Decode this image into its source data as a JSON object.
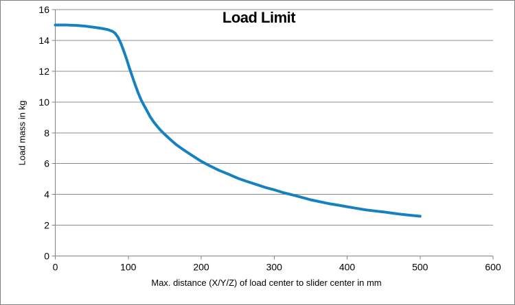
{
  "chart_data": {
    "type": "line",
    "title": "Load Limit",
    "xlabel": "Max. distance (X/Y/Z) of load center to slider center in mm",
    "ylabel": "Load mass in kg",
    "xlim": [
      0,
      600
    ],
    "ylim": [
      0,
      16
    ],
    "x_ticks": [
      0,
      100,
      200,
      300,
      400,
      500,
      600
    ],
    "y_ticks": [
      0,
      2,
      4,
      6,
      8,
      10,
      12,
      14,
      16
    ],
    "grid": "horizontal-only",
    "legend": "none",
    "series": [
      {
        "points": [
          [
            0,
            15.0
          ],
          [
            15,
            15.0
          ],
          [
            30,
            14.97
          ],
          [
            40,
            14.93
          ],
          [
            50,
            14.87
          ],
          [
            58,
            14.82
          ],
          [
            66,
            14.76
          ],
          [
            72,
            14.7
          ],
          [
            78,
            14.6
          ],
          [
            82,
            14.47
          ],
          [
            86,
            14.2
          ],
          [
            90,
            13.8
          ],
          [
            94,
            13.3
          ],
          [
            98,
            12.75
          ],
          [
            102,
            12.15
          ],
          [
            106,
            11.6
          ],
          [
            110,
            11.05
          ],
          [
            114,
            10.55
          ],
          [
            118,
            10.1
          ],
          [
            122,
            9.75
          ],
          [
            126,
            9.4
          ],
          [
            130,
            9.05
          ],
          [
            135,
            8.7
          ],
          [
            140,
            8.4
          ],
          [
            145,
            8.13
          ],
          [
            150,
            7.9
          ],
          [
            158,
            7.55
          ],
          [
            166,
            7.22
          ],
          [
            174,
            6.95
          ],
          [
            182,
            6.7
          ],
          [
            190,
            6.45
          ],
          [
            200,
            6.15
          ],
          [
            212,
            5.85
          ],
          [
            225,
            5.55
          ],
          [
            238,
            5.3
          ],
          [
            250,
            5.05
          ],
          [
            262,
            4.85
          ],
          [
            275,
            4.65
          ],
          [
            288,
            4.45
          ],
          [
            300,
            4.3
          ],
          [
            312,
            4.12
          ],
          [
            325,
            3.97
          ],
          [
            337,
            3.82
          ],
          [
            350,
            3.65
          ],
          [
            362,
            3.53
          ],
          [
            375,
            3.4
          ],
          [
            388,
            3.3
          ],
          [
            400,
            3.2
          ],
          [
            412,
            3.1
          ],
          [
            425,
            3.0
          ],
          [
            437,
            2.93
          ],
          [
            450,
            2.86
          ],
          [
            462,
            2.78
          ],
          [
            475,
            2.7
          ],
          [
            488,
            2.64
          ],
          [
            500,
            2.58
          ]
        ]
      }
    ],
    "colors": {
      "line": "#1581BE",
      "grid": "#8C8C8C",
      "axis": "#808080",
      "text": "#000000",
      "background": "#FFFFFF",
      "border": "#7F7F7F"
    }
  }
}
